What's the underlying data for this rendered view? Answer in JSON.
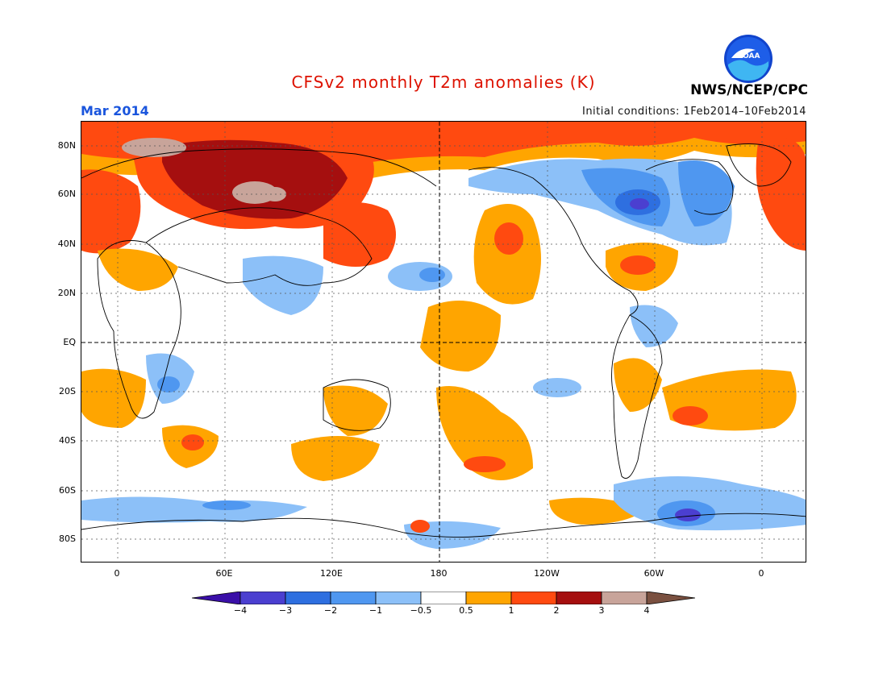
{
  "title": "CFSv2 monthly T2m anomalies (K)",
  "valid_month": "Mar 2014",
  "initial_conditions": "Initial conditions: 1Feb2014–10Feb2014",
  "agency": "NWS/NCEP/CPC",
  "logo_text": "NOAA",
  "lat_labels": [
    "80N",
    "60N",
    "40N",
    "20N",
    "EQ",
    "20S",
    "40S",
    "60S",
    "80S"
  ],
  "lon_labels": [
    "0",
    "60E",
    "120E",
    "180",
    "120W",
    "60W",
    "0"
  ],
  "colorbar": {
    "labels": [
      "−4",
      "−3",
      "−2",
      "−1",
      "−0.5",
      "0.5",
      "1",
      "2",
      "3",
      "4"
    ],
    "colors": [
      "#3a0fa8",
      "#4b3fd0",
      "#2e6fe0",
      "#4f97f0",
      "#8cc0f8",
      "#ffffff",
      "#ffa500",
      "#ff4a10",
      "#a50f0f",
      "#c8a49a",
      "#7a5040"
    ]
  },
  "anomaly_colors": {
    "neg_light": "#8cc0f8",
    "neg_mid": "#4f97f0",
    "neg_strong": "#2e6fe0",
    "neg_xstrong": "#4b3fd0",
    "pos_light": "#ffa500",
    "pos_mid": "#ff4a10",
    "pos_strong": "#a50f0f",
    "pos_xstrong": "#c8a49a"
  }
}
